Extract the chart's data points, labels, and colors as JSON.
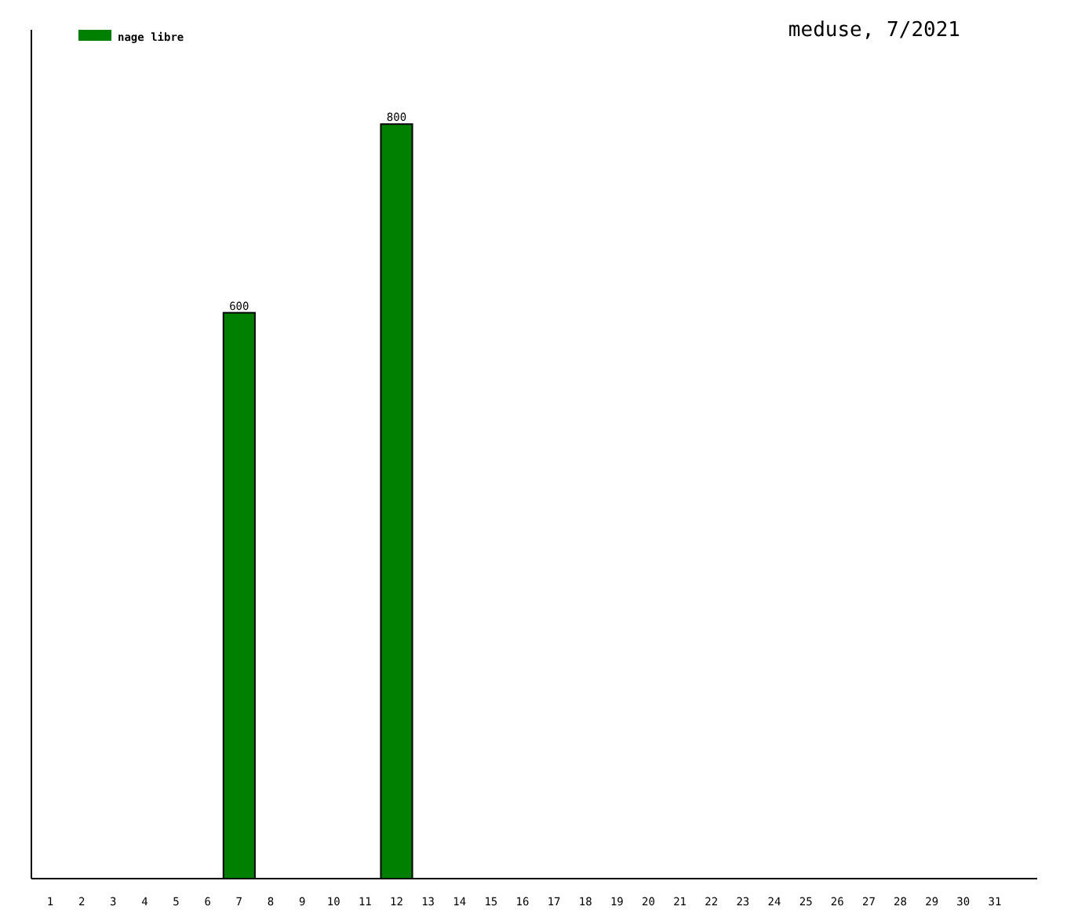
{
  "chart_data": {
    "type": "bar",
    "title": "meduse, 7/2021",
    "categories": [
      "1",
      "2",
      "3",
      "4",
      "5",
      "6",
      "7",
      "8",
      "9",
      "10",
      "11",
      "12",
      "13",
      "14",
      "15",
      "16",
      "17",
      "18",
      "19",
      "20",
      "21",
      "22",
      "23",
      "24",
      "25",
      "26",
      "27",
      "28",
      "29",
      "30",
      "31"
    ],
    "series": [
      {
        "name": "nage libre",
        "color": "#008000",
        "values": [
          null,
          null,
          null,
          null,
          null,
          null,
          600,
          null,
          null,
          null,
          null,
          800,
          null,
          null,
          null,
          null,
          null,
          null,
          null,
          null,
          null,
          null,
          null,
          null,
          null,
          null,
          null,
          null,
          null,
          null,
          null
        ]
      }
    ],
    "ylim": [
      0,
      900
    ],
    "data_labels": true,
    "legend": "top left"
  }
}
